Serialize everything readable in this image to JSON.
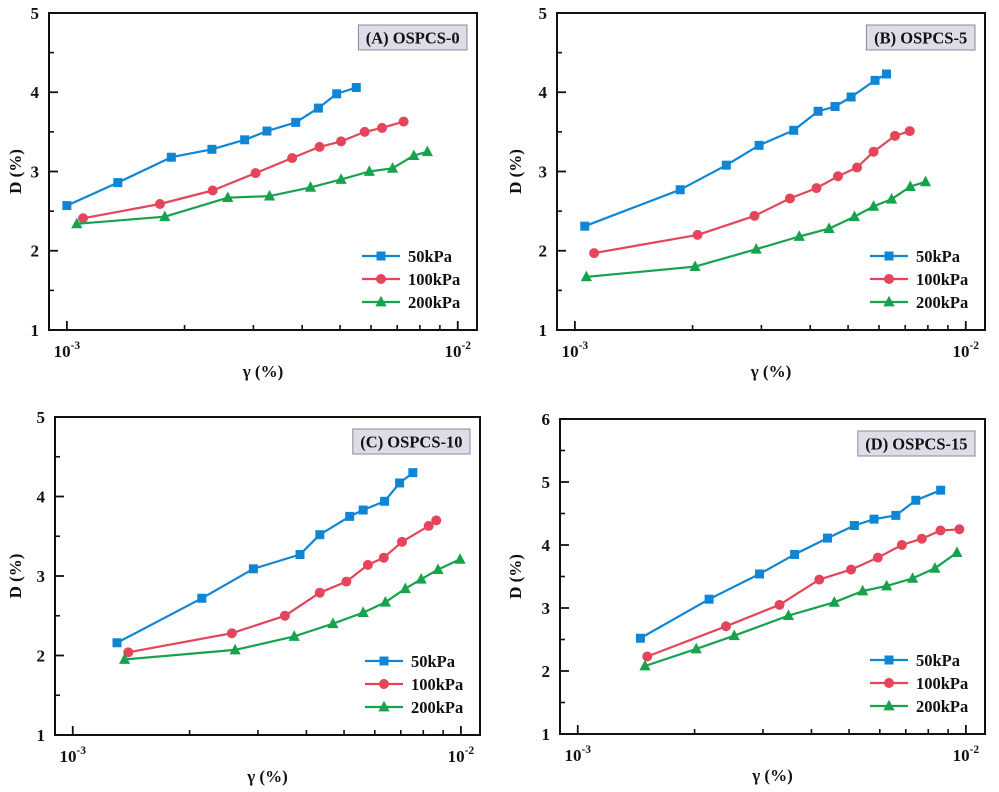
{
  "figure": {
    "background": "#ffffff",
    "axis_color": "#111111",
    "panel_label_bg": "#dcdde8",
    "panel_label_border": "#8a8a96"
  },
  "chart_data": [
    {
      "id": "A",
      "type": "line",
      "panel_label": "(A) OSPCS-0",
      "xlabel": "γ (%)",
      "ylabel": "D (%)",
      "x_scale": "log",
      "xlim": [
        0.0009,
        0.0112
      ],
      "ylim": [
        1,
        5
      ],
      "x_major_ticks": [
        0.001,
        0.01
      ],
      "x_tick_exponents": [
        "-3",
        "-2"
      ],
      "x_minor_ticks": [
        0.002,
        0.003,
        0.004,
        0.005,
        0.006,
        0.007,
        0.008,
        0.009
      ],
      "y_tick_labels": [
        "1",
        "2",
        "3",
        "4",
        "5"
      ],
      "y_minor_step": 0.5,
      "grid": false,
      "legend_position": "lower right",
      "series": [
        {
          "name": "50kPa",
          "color": "#0f86d4",
          "marker": "square",
          "x": [
            0.001,
            0.00135,
            0.00185,
            0.00235,
            0.00285,
            0.00325,
            0.00385,
            0.0044,
            0.0049,
            0.0055
          ],
          "y": [
            2.57,
            2.86,
            3.18,
            3.28,
            3.4,
            3.51,
            3.62,
            3.8,
            3.98,
            4.06
          ]
        },
        {
          "name": "100kPa",
          "color": "#e4455a",
          "marker": "circle",
          "x": [
            0.0011,
            0.00173,
            0.00236,
            0.00304,
            0.00377,
            0.00443,
            0.00503,
            0.00578,
            0.0064,
            0.00727
          ],
          "y": [
            2.41,
            2.59,
            2.76,
            2.98,
            3.17,
            3.31,
            3.38,
            3.5,
            3.55,
            3.63
          ]
        },
        {
          "name": "200kPa",
          "color": "#17a24d",
          "marker": "triangle",
          "x": [
            0.00106,
            0.00178,
            0.00258,
            0.0033,
            0.0042,
            0.00503,
            0.00594,
            0.00681,
            0.00772,
            0.00836
          ],
          "y": [
            2.34,
            2.43,
            2.67,
            2.69,
            2.8,
            2.9,
            3.0,
            3.04,
            3.2,
            3.25
          ]
        }
      ]
    },
    {
      "id": "B",
      "type": "line",
      "panel_label": "(B) OSPCS-5",
      "xlabel": "γ (%)",
      "ylabel": "D (%)",
      "x_scale": "log",
      "xlim": [
        0.0009,
        0.0112
      ],
      "ylim": [
        1,
        5
      ],
      "x_major_ticks": [
        0.001,
        0.01
      ],
      "x_tick_exponents": [
        "-3",
        "-2"
      ],
      "x_minor_ticks": [
        0.002,
        0.003,
        0.004,
        0.005,
        0.006,
        0.007,
        0.008,
        0.009
      ],
      "y_tick_labels": [
        "1",
        "2",
        "3",
        "4",
        "5"
      ],
      "y_minor_step": 0.5,
      "grid": false,
      "legend_position": "lower right",
      "series": [
        {
          "name": "50kPa",
          "color": "#0f86d4",
          "marker": "square",
          "x": [
            0.00106,
            0.00186,
            0.00244,
            0.00296,
            0.00363,
            0.00419,
            0.00463,
            0.00509,
            0.00586,
            0.00627
          ],
          "y": [
            2.31,
            2.77,
            3.08,
            3.33,
            3.52,
            3.76,
            3.82,
            3.94,
            4.15,
            4.23
          ]
        },
        {
          "name": "100kPa",
          "color": "#e4455a",
          "marker": "circle",
          "x": [
            0.00112,
            0.00206,
            0.00288,
            0.00355,
            0.00415,
            0.00471,
            0.00527,
            0.00581,
            0.00659,
            0.00719
          ],
          "y": [
            1.97,
            2.2,
            2.44,
            2.66,
            2.79,
            2.94,
            3.05,
            3.25,
            3.45,
            3.51
          ]
        },
        {
          "name": "200kPa",
          "color": "#17a24d",
          "marker": "triangle",
          "x": [
            0.00107,
            0.00203,
            0.00291,
            0.00375,
            0.00447,
            0.00519,
            0.00581,
            0.00646,
            0.00721,
            0.00789
          ],
          "y": [
            1.67,
            1.8,
            2.02,
            2.18,
            2.28,
            2.43,
            2.56,
            2.65,
            2.81,
            2.87
          ]
        }
      ]
    },
    {
      "id": "C",
      "type": "line",
      "panel_label": "(C) OSPCS-10",
      "xlabel": "γ (%)",
      "ylabel": "D (%)",
      "x_scale": "log",
      "xlim": [
        0.0009,
        0.0112
      ],
      "ylim": [
        1,
        5
      ],
      "x_major_ticks": [
        0.001,
        0.01
      ],
      "x_tick_exponents": [
        "-3",
        "-2"
      ],
      "x_minor_ticks": [
        0.002,
        0.003,
        0.004,
        0.005,
        0.006,
        0.007,
        0.008,
        0.009
      ],
      "y_tick_labels": [
        "1",
        "2",
        "3",
        "4",
        "5"
      ],
      "y_minor_step": 0.5,
      "grid": false,
      "legend_position": "lower right",
      "series": [
        {
          "name": "50kPa",
          "color": "#0f86d4",
          "marker": "square",
          "x": [
            0.0013,
            0.00215,
            0.00292,
            0.00385,
            0.00433,
            0.00517,
            0.0056,
            0.00636,
            0.00695,
            0.00752
          ],
          "y": [
            2.16,
            2.72,
            3.09,
            3.27,
            3.52,
            3.75,
            3.83,
            3.94,
            4.17,
            4.3
          ]
        },
        {
          "name": "100kPa",
          "color": "#e4455a",
          "marker": "circle",
          "x": [
            0.00139,
            0.00257,
            0.00352,
            0.00433,
            0.00507,
            0.00576,
            0.00633,
            0.00705,
            0.00826,
            0.00864
          ],
          "y": [
            2.04,
            2.28,
            2.5,
            2.79,
            2.93,
            3.14,
            3.23,
            3.43,
            3.63,
            3.7
          ]
        },
        {
          "name": "200kPa",
          "color": "#17a24d",
          "marker": "triangle",
          "x": [
            0.00136,
            0.00262,
            0.00372,
            0.00468,
            0.0056,
            0.00639,
            0.00719,
            0.0079,
            0.00873,
            0.00995
          ],
          "y": [
            1.95,
            2.07,
            2.24,
            2.4,
            2.54,
            2.67,
            2.84,
            2.96,
            3.08,
            3.21
          ]
        }
      ]
    },
    {
      "id": "D",
      "type": "line",
      "panel_label": "(D) OSPCS-15",
      "xlabel": "γ (%)",
      "ylabel": "D (%)",
      "x_scale": "log",
      "xlim": [
        0.0009,
        0.0112
      ],
      "ylim": [
        1,
        6
      ],
      "x_major_ticks": [
        0.001,
        0.01
      ],
      "x_tick_exponents": [
        "-3",
        "-2"
      ],
      "x_minor_ticks": [
        0.002,
        0.003,
        0.004,
        0.005,
        0.006,
        0.007,
        0.008,
        0.009
      ],
      "y_tick_labels": [
        "1",
        "2",
        "3",
        "4",
        "5",
        "6"
      ],
      "y_minor_step": 0.5,
      "grid": false,
      "legend_position": "lower right",
      "series": [
        {
          "name": "50kPa",
          "color": "#0f86d4",
          "marker": "square",
          "x": [
            0.00145,
            0.00218,
            0.00294,
            0.00362,
            0.0044,
            0.00516,
            0.0058,
            0.0066,
            0.00743,
            0.00861
          ],
          "y": [
            2.52,
            3.14,
            3.54,
            3.85,
            4.11,
            4.31,
            4.41,
            4.47,
            4.71,
            4.87
          ]
        },
        {
          "name": "100kPa",
          "color": "#e4455a",
          "marker": "circle",
          "x": [
            0.00151,
            0.00241,
            0.00331,
            0.00419,
            0.00506,
            0.00593,
            0.00684,
            0.0077,
            0.0086,
            0.00962
          ],
          "y": [
            2.23,
            2.71,
            3.05,
            3.45,
            3.61,
            3.8,
            4.0,
            4.1,
            4.23,
            4.25
          ]
        },
        {
          "name": "200kPa",
          "color": "#17a24d",
          "marker": "triangle",
          "x": [
            0.00149,
            0.00202,
            0.00253,
            0.00349,
            0.00458,
            0.00542,
            0.00625,
            0.00729,
            0.00832,
            0.00948
          ],
          "y": [
            2.08,
            2.35,
            2.56,
            2.88,
            3.09,
            3.27,
            3.35,
            3.47,
            3.63,
            3.88
          ]
        }
      ]
    }
  ]
}
